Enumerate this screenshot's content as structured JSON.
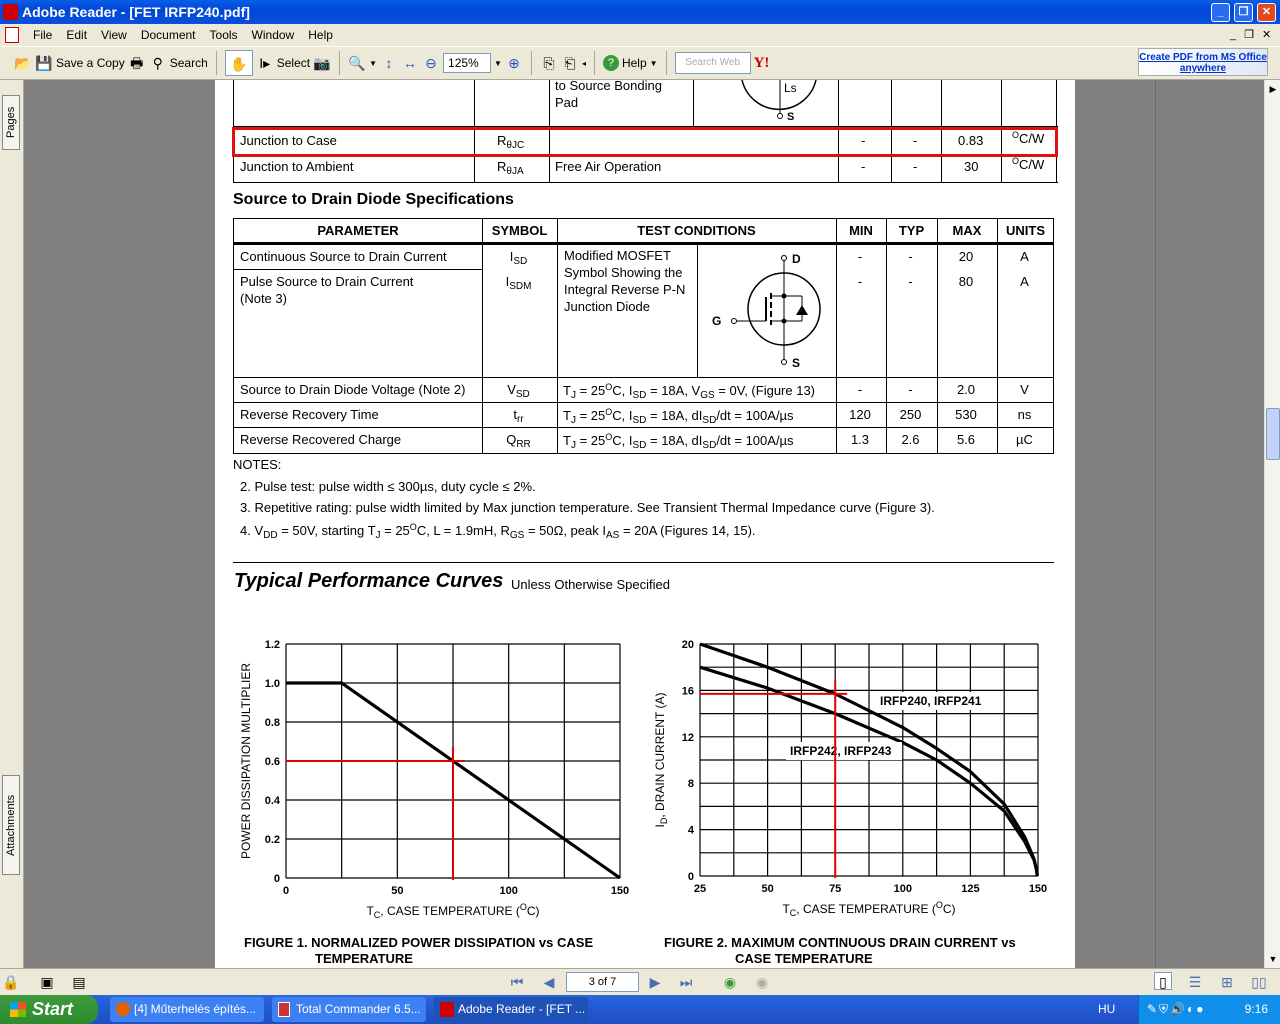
{
  "window": {
    "title": "Adobe Reader - [FET IRFP240.pdf]",
    "minimize": "_",
    "restore": "❐",
    "close": "✕"
  },
  "menu": [
    "File",
    "Edit",
    "View",
    "Document",
    "Tools",
    "Window",
    "Help"
  ],
  "toolbar": {
    "save_copy": "Save a Copy",
    "search": "Search",
    "select": "Select",
    "zoom": "125%",
    "help": "Help",
    "search_web_placeholder": "Search Web",
    "yahoo": "Y!",
    "promo": "Create PDF from MS Office anywhere"
  },
  "left_panel": {
    "tabs": [
      "Pages",
      "Attachments"
    ]
  },
  "pdf": {
    "thermal_table": {
      "partial_row": {
        "conditions": "to Source Bonding Pad",
        "diagram_labels": [
          "Ls",
          "S"
        ]
      },
      "rows": [
        {
          "parameter": "Junction to Case",
          "symbol": [
            "R",
            {
              "sub": "θJC"
            }
          ],
          "conditions": "",
          "min": "-",
          "typ": "-",
          "max": "0.83",
          "units": [
            {
              "sup": "O"
            },
            "C/W"
          ],
          "highlighted": true
        },
        {
          "parameter": "Junction to Ambient",
          "symbol": [
            "R",
            {
              "sub": "θJA"
            }
          ],
          "conditions": "Free Air Operation",
          "min": "-",
          "typ": "-",
          "max": "30",
          "units": [
            {
              "sup": "O"
            },
            "C/W"
          ]
        }
      ]
    },
    "diode_section_title": "Source to Drain Diode Specifications",
    "diode_table": {
      "headers": [
        "PARAMETER",
        "SYMBOL",
        "TEST CONDITIONS",
        "MIN",
        "TYP",
        "MAX",
        "UNITS"
      ],
      "shared_conditions": "Modified MOSFET Symbol Showing the Integral Reverse P-N Junction Diode",
      "diagram_labels": {
        "d": "D",
        "g": "G",
        "s": "S"
      },
      "rows": [
        {
          "parameter": "Continuous Source to Drain Current",
          "symbol": [
            "I",
            {
              "sub": "SD"
            }
          ],
          "min": "-",
          "typ": "-",
          "max": "20",
          "units": [
            "A"
          ]
        },
        {
          "parameter": "Pulse Source to Drain Current (Note 3)",
          "symbol": [
            "I",
            {
              "sub": "SDM"
            }
          ],
          "min": "-",
          "typ": "-",
          "max": "80",
          "units": [
            "A"
          ]
        },
        {
          "parameter": "Source to Drain Diode Voltage (Note 2)",
          "symbol": [
            "V",
            {
              "sub": "SD"
            }
          ],
          "conditions": [
            "T",
            {
              "sub": "J"
            },
            " = 25",
            {
              "sup": "O"
            },
            "C, I",
            {
              "sub": "SD"
            },
            " = 18A, V",
            {
              "sub": "GS"
            },
            " = 0V, (Figure 13)"
          ],
          "min": "-",
          "typ": "-",
          "max": "2.0",
          "units": [
            "V"
          ]
        },
        {
          "parameter": "Reverse Recovery Time",
          "symbol": [
            "t",
            {
              "sub": "rr"
            }
          ],
          "conditions": [
            "T",
            {
              "sub": "J"
            },
            " = 25",
            {
              "sup": "O"
            },
            "C, I",
            {
              "sub": "SD"
            },
            " = 18A, dI",
            {
              "sub": "SD"
            },
            "/dt = 100A/µs"
          ],
          "min": "120",
          "typ": "250",
          "max": "530",
          "units": [
            "ns"
          ]
        },
        {
          "parameter": "Reverse Recovered Charge",
          "symbol": [
            "Q",
            {
              "sub": "RR"
            }
          ],
          "conditions": [
            "T",
            {
              "sub": "J"
            },
            " = 25",
            {
              "sup": "O"
            },
            "C, I",
            {
              "sub": "SD"
            },
            " = 18A, dI",
            {
              "sub": "SD"
            },
            "/dt = 100A/µs"
          ],
          "min": "1.3",
          "typ": "2.6",
          "max": "5.6",
          "units": [
            "µC"
          ]
        }
      ]
    },
    "notes": {
      "title": "NOTES:",
      "items": [
        [
          "2.  Pulse test: pulse width ≤ 300µs, duty cycle ≤ 2%."
        ],
        [
          "3.  Repetitive rating: pulse width limited by Max junction temperature. See Transient Thermal Impedance curve (Figure 3)."
        ],
        [
          "4.  V",
          {
            "sub": "DD"
          },
          " = 50V, starting T",
          {
            "sub": "J"
          },
          " = 25",
          {
            "sup": "O"
          },
          "C, L = 1.9mH, R",
          {
            "sub": "GS"
          },
          " = 50Ω, peak I",
          {
            "sub": "AS"
          },
          " = 20A (Figures 14, 15)."
        ]
      ]
    },
    "curves_title": "Typical Performance Curves",
    "curves_subtitle": "Unless Otherwise Specified",
    "figure_captions": [
      [
        "FIGURE 1.  NORMALIZED POWER DISSIPATION vs CASE",
        "TEMPERATURE"
      ],
      [
        "FIGURE 2.  MAXIMUM CONTINUOUS DRAIN CURRENT vs",
        "CASE TEMPERATURE"
      ]
    ]
  },
  "chart_data": [
    {
      "type": "line",
      "title": "FIGURE 1. NORMALIZED POWER DISSIPATION vs CASE TEMPERATURE",
      "xlabel": "TC, CASE TEMPERATURE (OC)",
      "ylabel": "POWER DISSIPATION MULTIPLIER",
      "xlim": [
        0,
        150
      ],
      "ylim": [
        0,
        1.2
      ],
      "xticks": [
        0,
        50,
        100,
        150
      ],
      "yticks": [
        0,
        0.2,
        0.4,
        0.6,
        0.8,
        1.0,
        1.2
      ],
      "ytick_labels": [
        "0",
        "0.2",
        "0.4",
        "0.6",
        "0.8",
        "1.0",
        "1.2"
      ],
      "x_grid_step": 25,
      "y_grid_step": 0.2,
      "grid": true,
      "series": [
        {
          "x": [
            0,
            25,
            150
          ],
          "y": [
            1.0,
            1.0,
            0
          ],
          "color": "#000000"
        }
      ],
      "annotations": [
        {
          "type": "crosshair",
          "x": 75,
          "y": 0.6,
          "color": "#e00000"
        }
      ]
    },
    {
      "type": "line",
      "title": "FIGURE 2. MAXIMUM CONTINUOUS DRAIN CURRENT vs CASE TEMPERATURE",
      "xlabel": "TC, CASE TEMPERATURE (OC)",
      "ylabel": "ID, DRAIN CURRENT (A)",
      "xlim": [
        25,
        150
      ],
      "ylim": [
        0,
        20
      ],
      "xticks": [
        25,
        50,
        75,
        100,
        125,
        150
      ],
      "yticks": [
        0,
        4,
        8,
        12,
        16,
        20
      ],
      "ytick_labels": [
        "0",
        "4",
        "8",
        "12",
        "16",
        "20"
      ],
      "x_grid_step": 12.5,
      "y_grid_step": 2,
      "grid": true,
      "series": [
        {
          "name": "IRFP240, IRFP241",
          "x": [
            25,
            50,
            75,
            100,
            112.5,
            125,
            137.5,
            145,
            148.5,
            149.5,
            149.7
          ],
          "y": [
            20,
            18,
            15.7,
            12.8,
            11,
            9,
            6.2,
            3.4,
            1.5,
            0.5,
            0
          ],
          "color": "#000000"
        },
        {
          "name": "IRFP242, IRFP243",
          "x": [
            25,
            50,
            75,
            100,
            112.5,
            125,
            137.5,
            145,
            148.5,
            149.5,
            149.7
          ],
          "y": [
            18,
            16.2,
            14,
            11.5,
            10,
            8,
            5.6,
            3.0,
            1.4,
            0.5,
            0
          ],
          "color": "#000000"
        }
      ],
      "annotations": [
        {
          "type": "crosshair",
          "x": 75,
          "y": 15.7,
          "color": "#e00000"
        }
      ]
    }
  ],
  "status_bar": {
    "page_field": "3 of 7"
  },
  "taskbar": {
    "start": "Start",
    "tasks": [
      "[4] Műterhelés építés...",
      "Total Commander 6.5...",
      "Adobe Reader - [FET ..."
    ],
    "lang": "HU",
    "clock": "9:16"
  }
}
